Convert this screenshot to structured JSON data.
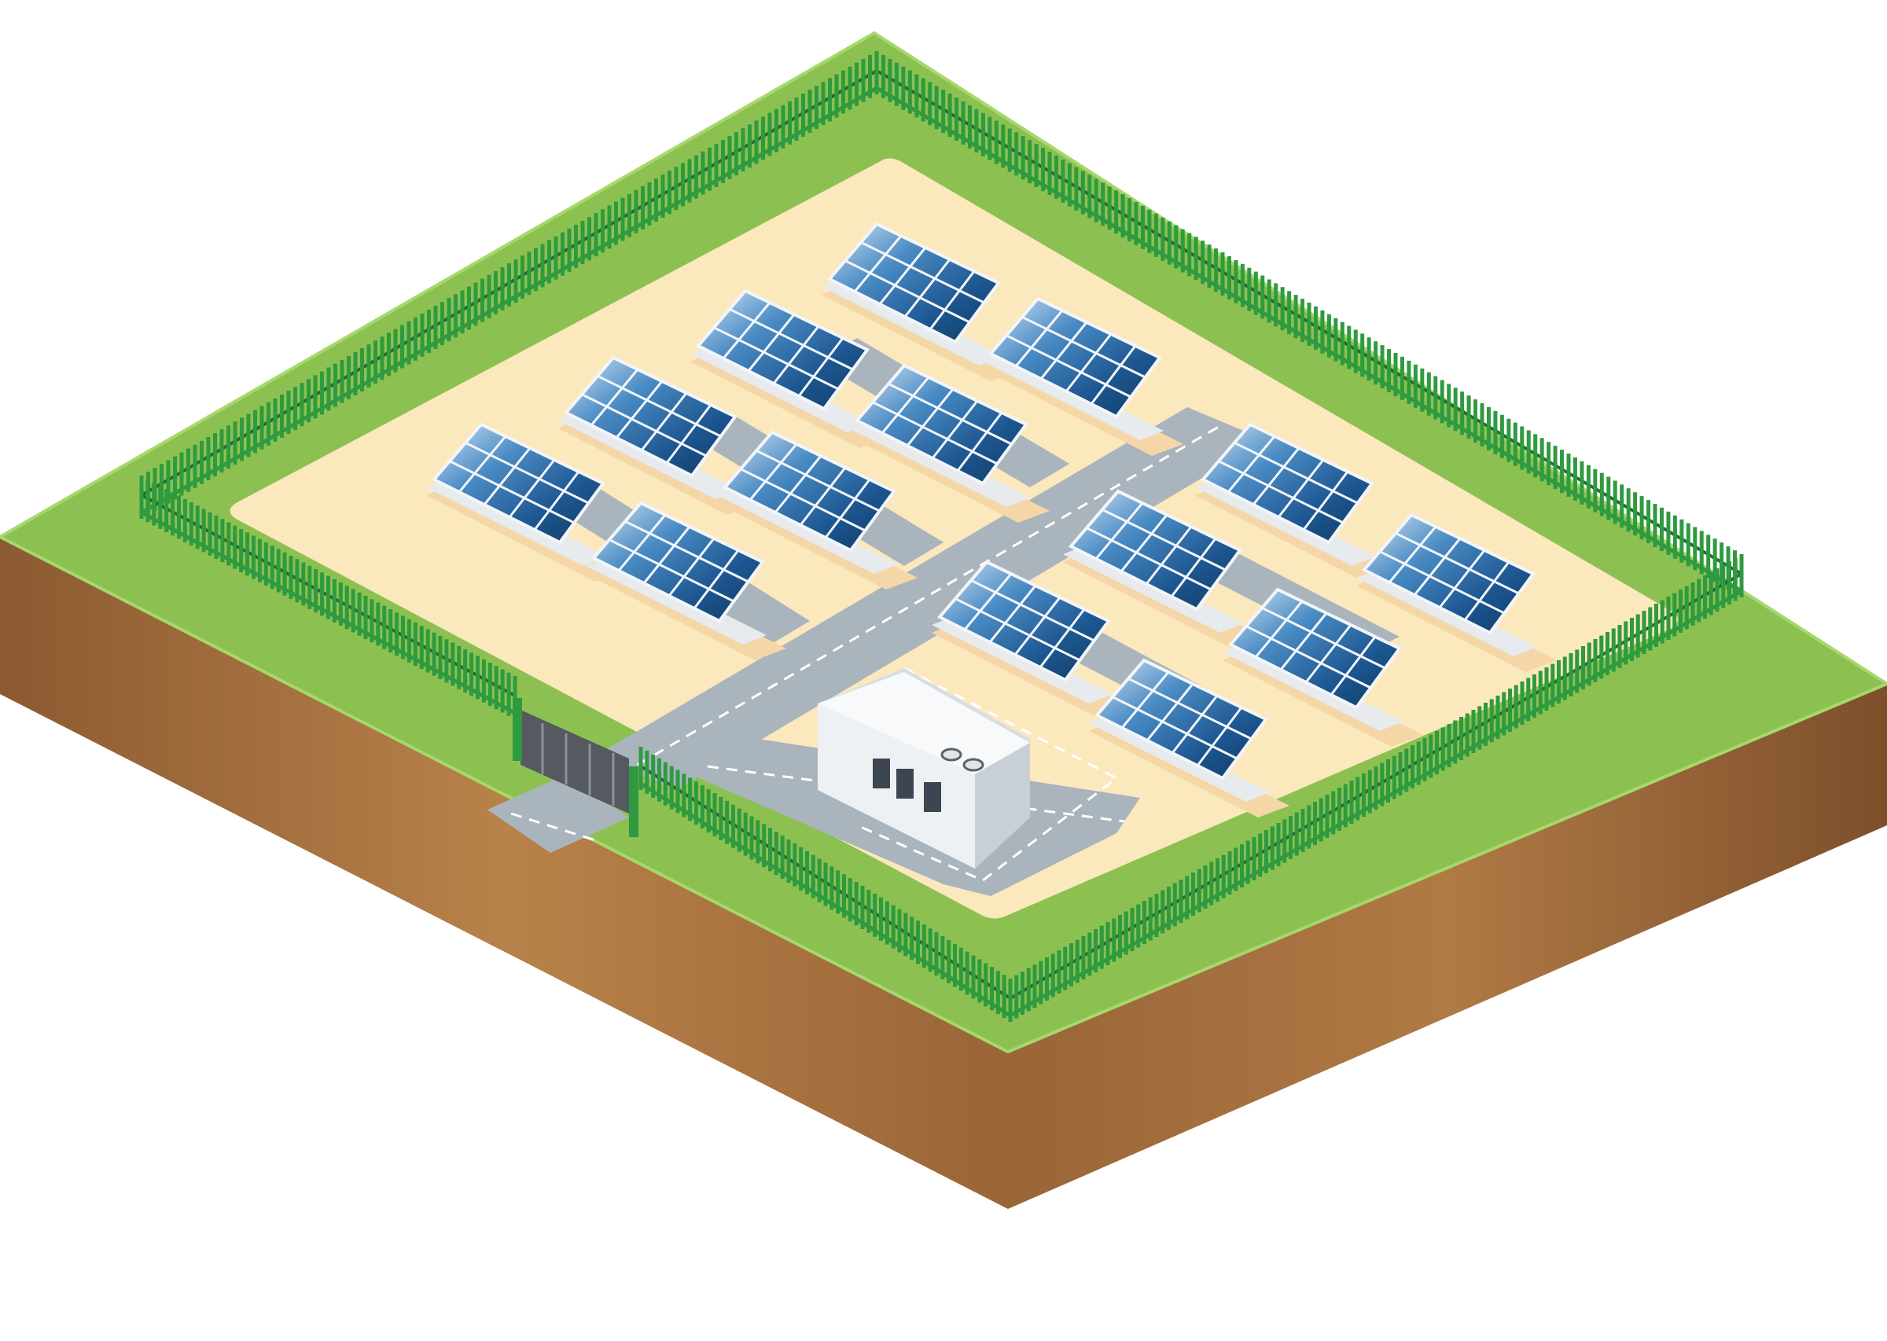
{
  "scene": {
    "description_tags": [
      "isometric",
      "solar-farm"
    ],
    "panel_count": 14,
    "colors": {
      "background": "#ffffff",
      "grass": "#8cc152",
      "grass_light": "#9ed15f",
      "soil": "#9a6537",
      "soil_light": "#b8824a",
      "sand": "#fbe8bd",
      "sand_shadow": "#f4d6a7",
      "road": "#a9b4bd",
      "road_edge": "#8b97a0",
      "fence": "#2f9a3f",
      "fence_dark": "#1f6e2c",
      "panel_dark": "#113e6a",
      "panel_mid": "#2a6aa3",
      "panel_light": "#bcd6ee",
      "building": "#eef1f4",
      "building_side": "#d8dde3",
      "gate": "#545a5f"
    },
    "icons": [
      "solar-panel-icon",
      "building-icon",
      "gate-icon",
      "fence-icon",
      "road-icon"
    ]
  }
}
